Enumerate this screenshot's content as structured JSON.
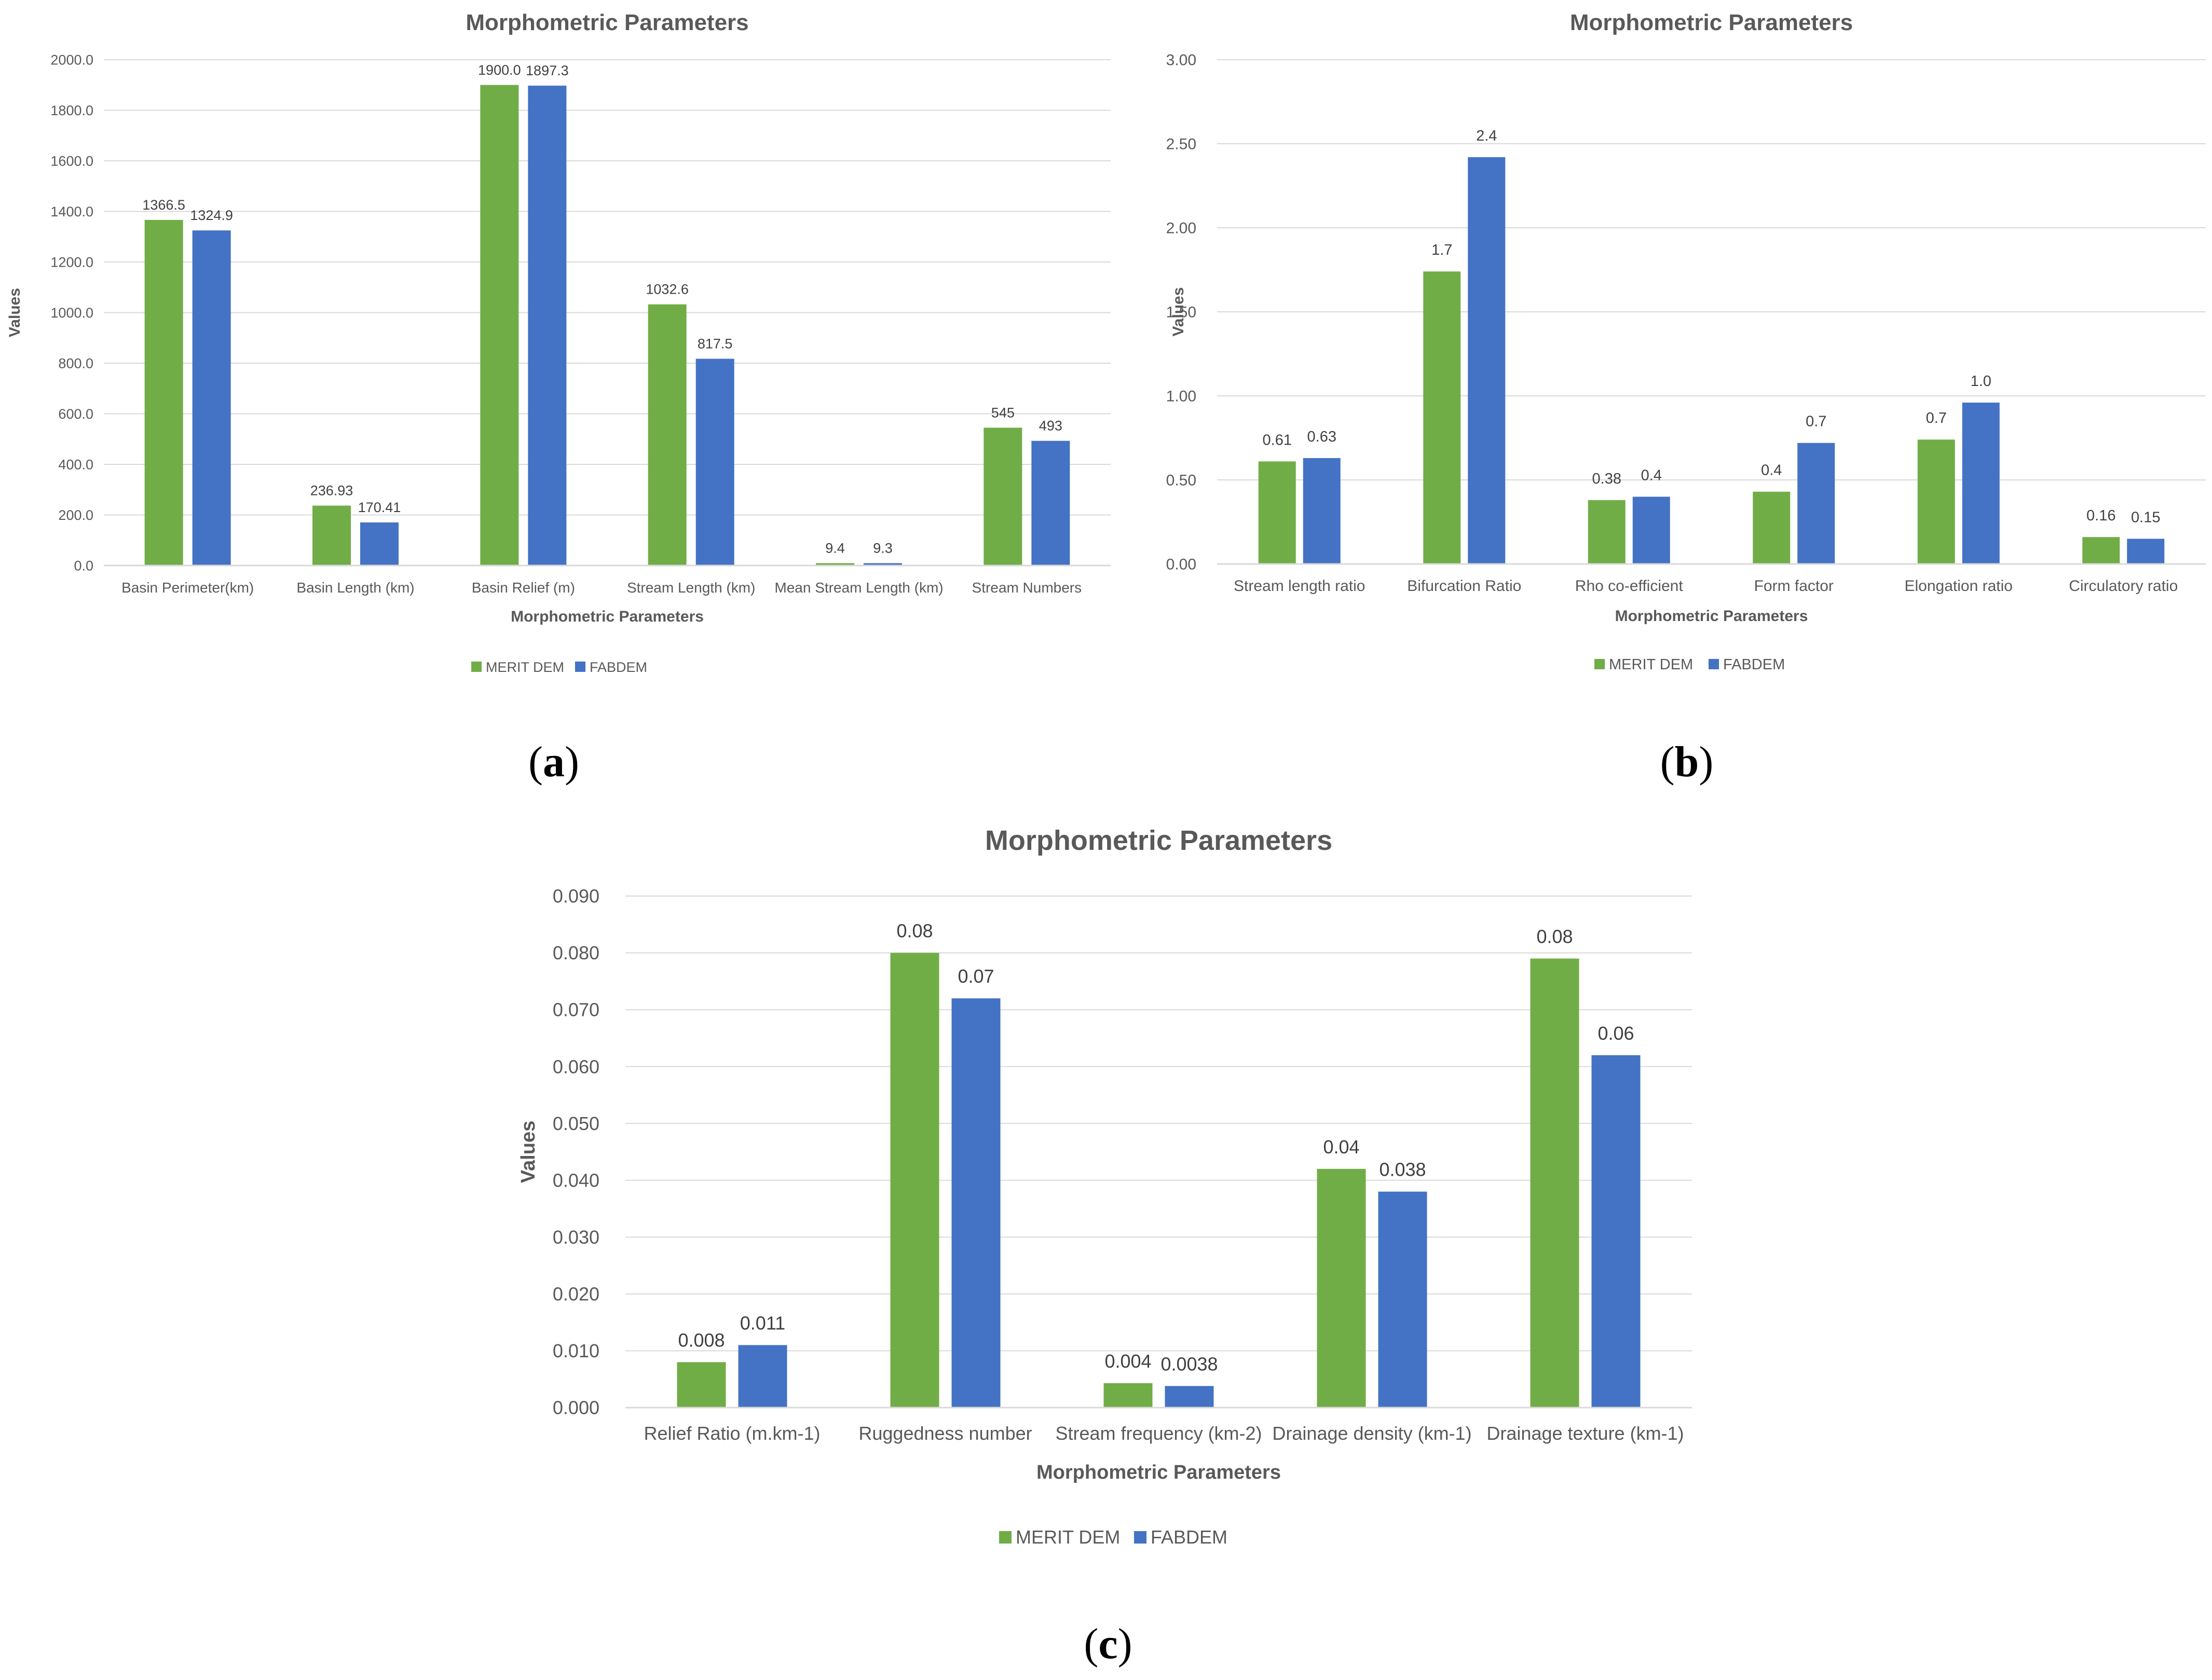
{
  "colors": {
    "merit": "#70AD47",
    "fabdem": "#4472C4",
    "grid": "#D9D9D9",
    "axis_text": "#595959",
    "title": "#595959"
  },
  "panels": [
    {
      "letter": "a"
    },
    {
      "letter": "b"
    },
    {
      "letter": "c"
    }
  ],
  "chart_data": [
    {
      "type": "bar",
      "title": "Morphometric Parameters",
      "xlabel": "Morphometric Parameters",
      "ylabel": "Values",
      "ylim": [
        0,
        2000
      ],
      "yticks": [
        "0.0",
        "200.0",
        "400.0",
        "600.0",
        "800.0",
        "1000.0",
        "1200.0",
        "1400.0",
        "1600.0",
        "1800.0",
        "2000.0"
      ],
      "categories": [
        "Basin Perimeter(km)",
        "Basin Length (km)",
        "Basin Relief (m)",
        "Stream Length (km)",
        "Mean Stream Length (km)",
        "Stream Numbers"
      ],
      "series": [
        {
          "name": "MERIT DEM",
          "values": [
            1366.5,
            236.93,
            1900.0,
            1032.6,
            9.4,
            545
          ],
          "labels": [
            "1366.5",
            "236.93",
            "1900.0",
            "1032.6",
            "9.4",
            "545"
          ]
        },
        {
          "name": "FABDEM",
          "values": [
            1324.9,
            170.41,
            1897.3,
            817.5,
            9.3,
            493
          ],
          "labels": [
            "1324.9",
            "170.41",
            "1897.3",
            "817.5",
            "9.3",
            "493"
          ]
        }
      ],
      "legend": "bottom"
    },
    {
      "type": "bar",
      "title": "Morphometric Parameters",
      "xlabel": "Morphometric Parameters",
      "ylabel": "Values",
      "ylim": [
        0,
        3
      ],
      "yticks": [
        "0.00",
        "0.50",
        "1.00",
        "1.50",
        "2.00",
        "2.50",
        "3.00"
      ],
      "categories": [
        "Stream length ratio",
        "Bifurcation Ratio",
        "Rho co-efficient",
        "Form factor",
        "Elongation ratio",
        "Circulatory ratio"
      ],
      "series": [
        {
          "name": "MERIT DEM",
          "values": [
            0.61,
            1.74,
            0.38,
            0.43,
            0.74,
            0.16
          ],
          "labels": [
            "0.61",
            "1.7",
            "0.38",
            "0.4",
            "0.7",
            "0.16"
          ]
        },
        {
          "name": "FABDEM",
          "values": [
            0.63,
            2.42,
            0.4,
            0.72,
            0.96,
            0.15
          ],
          "labels": [
            "0.63",
            "2.4",
            "0.4",
            "0.7",
            "1.0",
            "0.15"
          ]
        }
      ],
      "legend": "bottom"
    },
    {
      "type": "bar",
      "title": "Morphometric Parameters",
      "xlabel": "Morphometric Parameters",
      "ylabel": "Values",
      "ylim": [
        0,
        0.09
      ],
      "yticks": [
        "0.000",
        "0.010",
        "0.020",
        "0.030",
        "0.040",
        "0.050",
        "0.060",
        "0.070",
        "0.080",
        "0.090"
      ],
      "categories": [
        "Relief Ratio (m.km-1)",
        "Ruggedness number",
        "Stream frequency (km-2)",
        "Drainage density (km-1)",
        "Drainage texture (km-1)"
      ],
      "series": [
        {
          "name": "MERIT DEM",
          "values": [
            0.008,
            0.08,
            0.0043,
            0.042,
            0.079
          ],
          "labels": [
            "0.008",
            "0.08",
            "0.004",
            "0.04",
            "0.08"
          ]
        },
        {
          "name": "FABDEM",
          "values": [
            0.011,
            0.072,
            0.0038,
            0.038,
            0.062
          ],
          "labels": [
            "0.011",
            "0.07",
            "0.0038",
            "0.038",
            "0.06"
          ]
        }
      ],
      "legend": "bottom"
    }
  ]
}
